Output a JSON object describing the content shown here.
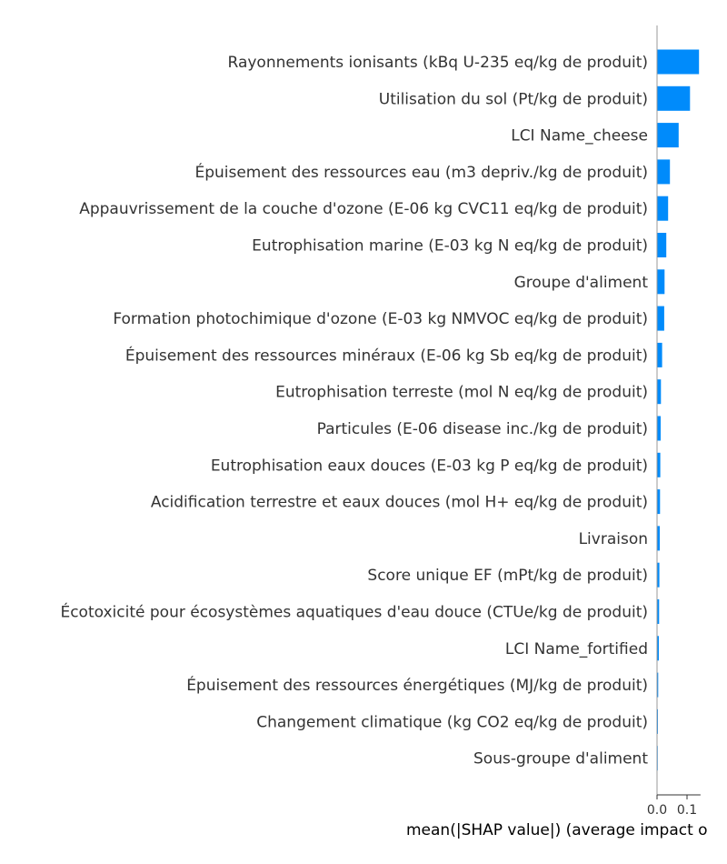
{
  "chart_data": {
    "type": "bar",
    "orientation": "horizontal",
    "title": "",
    "xlabel": "mean(|SHAP value|) (average impact o",
    "ylabel": "",
    "xlim": [
      0,
      0.145
    ],
    "xticks": [
      "0.0",
      "0.1"
    ],
    "xtick_values": [
      0.0,
      0.1
    ],
    "grid": false,
    "bar_color": "#008bfb",
    "axis_color": "#999999",
    "categories": [
      "Rayonnements ionisants (kBq U-235 eq/kg de produit)",
      "Utilisation du sol (Pt/kg de produit)",
      "LCI Name_cheese",
      "Épuisement des ressources eau (m3 depriv./kg de produit)",
      "Appauvrissement de la couche d'ozone (E-06 kg CVC11 eq/kg de produit)",
      "Eutrophisation marine (E-03 kg N eq/kg de produit)",
      "Groupe d'aliment",
      "Formation photochimique d'ozone (E-03 kg NMVOC eq/kg de produit)",
      "Épuisement des ressources minéraux (E-06 kg Sb eq/kg de produit)",
      "Eutrophisation terreste (mol N eq/kg de produit)",
      "Particules (E-06 disease inc./kg de produit)",
      "Eutrophisation eaux douces (E-03 kg P eq/kg de produit)",
      "Acidification terrestre et eaux douces (mol H+ eq/kg de produit)",
      "Livraison",
      "Score unique EF (mPt/kg de produit)",
      "Écotoxicité pour écosystèmes aquatiques d'eau douce (CTUe/kg de produit)",
      "LCI Name_fortified",
      "Épuisement des ressources énergétiques (MJ/kg de produit)",
      "Changement climatique (kg CO2 eq/kg de produit)",
      "Sous-groupe d'aliment"
    ],
    "values": [
      0.14,
      0.11,
      0.072,
      0.043,
      0.037,
      0.031,
      0.025,
      0.024,
      0.017,
      0.013,
      0.012,
      0.011,
      0.01,
      0.009,
      0.008,
      0.007,
      0.006,
      0.004,
      0.003,
      0.002
    ]
  }
}
